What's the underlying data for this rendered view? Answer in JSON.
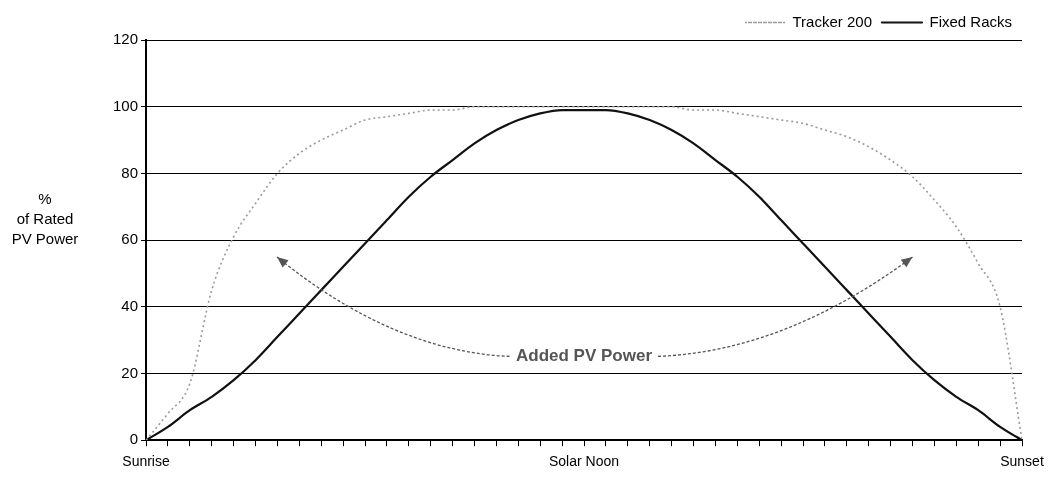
{
  "chart_data": {
    "type": "line",
    "ylabel": "%\nof Rated\nPV Power",
    "categories": [
      "Sunrise",
      null,
      null,
      null,
      null,
      null,
      null,
      null,
      null,
      null,
      null,
      null,
      null,
      null,
      null,
      null,
      null,
      null,
      null,
      null,
      "Solar Noon",
      null,
      null,
      null,
      null,
      null,
      null,
      null,
      null,
      null,
      null,
      null,
      null,
      null,
      null,
      null,
      null,
      null,
      null,
      null,
      "Sunset"
    ],
    "series": [
      {
        "name": "Tracker 200",
        "color": "#9a9a9a",
        "line_style": "dotted",
        "values": [
          0,
          8,
          17,
          45,
          61,
          71,
          80,
          86,
          90,
          93,
          96,
          97,
          98,
          99,
          99,
          100,
          100,
          100,
          100,
          100,
          100,
          100,
          100,
          100,
          100,
          99,
          99,
          98,
          97,
          96,
          95,
          93,
          91,
          88,
          84,
          79,
          72,
          64,
          53,
          40,
          0
        ]
      },
      {
        "name": "Fixed Racks",
        "color": "#111111",
        "line_style": "solid",
        "values": [
          0,
          4,
          9,
          13,
          18,
          24,
          31,
          38,
          45,
          52,
          59,
          66,
          73,
          79,
          84,
          89,
          93,
          96,
          98,
          99,
          99,
          99,
          98,
          96,
          93,
          89,
          84,
          79,
          73,
          66,
          59,
          52,
          45,
          38,
          31,
          24,
          18,
          13,
          9,
          4,
          0
        ]
      }
    ],
    "ylim": [
      0,
      120
    ],
    "yticks": [
      0,
      20,
      40,
      60,
      80,
      100,
      120
    ],
    "grid": "y",
    "legend": "top right",
    "marker": "none",
    "annotations": [
      "Added PV Power"
    ]
  }
}
